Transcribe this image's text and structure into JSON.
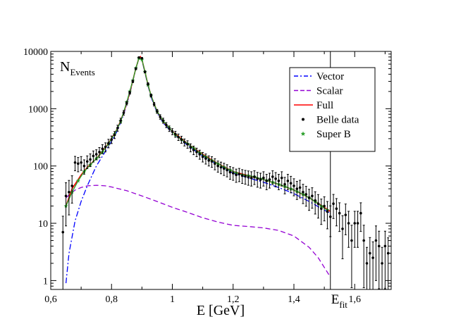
{
  "chart_data": {
    "type": "line",
    "y_scale": "log",
    "xlabel": "E [GeV]",
    "ylabel_main": "N",
    "ylabel_sub": "Events",
    "xlim": [
      0.6,
      1.72
    ],
    "ylim": [
      0.7,
      10000
    ],
    "x_ticks": [
      0.6,
      0.8,
      1.0,
      1.2,
      1.4,
      1.6
    ],
    "x_tick_labels": [
      "0,6",
      "0,8",
      "1",
      "1,2",
      "1,4",
      "1,6"
    ],
    "y_ticks": [
      1,
      10,
      100,
      1000,
      10000
    ],
    "y_tick_labels": [
      "1",
      "10",
      "100",
      "1000",
      "10000"
    ],
    "vline": {
      "x": 1.52,
      "label_main": "E",
      "label_sub": "fit"
    },
    "legend_position": "top-right",
    "colors": {
      "vector": "#0000ff",
      "scalar": "#9400d3",
      "full": "#ff0000",
      "belle": "#000000",
      "superb": "#2ca02c"
    },
    "legend": [
      {
        "key": "vector",
        "label": "Vector",
        "style": "dashdot"
      },
      {
        "key": "scalar",
        "label": "Scalar",
        "style": "dashed"
      },
      {
        "key": "full",
        "label": "Full",
        "style": "solid"
      },
      {
        "key": "belle",
        "label": "Belle data",
        "style": "dot"
      },
      {
        "key": "superb",
        "label": "Super B",
        "style": "star"
      }
    ],
    "series": [
      {
        "name": "Vector",
        "key": "vector",
        "x": [
          0.65,
          0.66,
          0.68,
          0.7,
          0.72,
          0.75,
          0.78,
          0.8,
          0.82,
          0.84,
          0.86,
          0.87,
          0.88,
          0.89,
          0.895,
          0.9,
          0.91,
          0.92,
          0.93,
          0.95,
          0.97,
          1.0,
          1.05,
          1.1,
          1.15,
          1.2,
          1.25,
          1.3,
          1.35,
          1.4,
          1.45,
          1.5,
          1.52
        ],
        "y": [
          0.9,
          3,
          11,
          24,
          45,
          100,
          180,
          270,
          420,
          800,
          1800,
          3000,
          5000,
          7500,
          8000,
          7000,
          4200,
          2500,
          1600,
          850,
          560,
          380,
          230,
          150,
          105,
          75,
          62,
          52,
          42,
          33,
          24,
          17,
          15
        ]
      },
      {
        "name": "Scalar",
        "key": "scalar",
        "x": [
          0.65,
          0.68,
          0.7,
          0.72,
          0.75,
          0.78,
          0.8,
          0.85,
          0.9,
          0.95,
          1.0,
          1.05,
          1.1,
          1.15,
          1.2,
          1.25,
          1.3,
          1.35,
          1.4,
          1.45,
          1.48,
          1.5,
          1.52
        ],
        "y": [
          28,
          38,
          42,
          45,
          46,
          45,
          43,
          37,
          30,
          24,
          19,
          15.5,
          12.5,
          10.5,
          9.2,
          8.8,
          8.3,
          7.5,
          6,
          3.8,
          2.5,
          1.7,
          1.15
        ]
      },
      {
        "name": "Full",
        "key": "full",
        "x": [
          0.65,
          0.67,
          0.7,
          0.72,
          0.75,
          0.78,
          0.8,
          0.82,
          0.84,
          0.86,
          0.87,
          0.88,
          0.89,
          0.895,
          0.9,
          0.91,
          0.92,
          0.93,
          0.95,
          0.97,
          1.0,
          1.05,
          1.1,
          1.15,
          1.2,
          1.25,
          1.3,
          1.35,
          1.4,
          1.45,
          1.5,
          1.52
        ],
        "y": [
          20,
          40,
          70,
          95,
          135,
          210,
          300,
          460,
          850,
          1900,
          3100,
          5100,
          7600,
          8100,
          7200,
          4400,
          2600,
          1700,
          900,
          600,
          400,
          245,
          160,
          110,
          80,
          68,
          58,
          48,
          38,
          28,
          19,
          16
        ]
      },
      {
        "name": "Super B",
        "key": "superb",
        "x": [
          0.65,
          0.67,
          0.69,
          0.71,
          0.73,
          0.75,
          0.77,
          0.79,
          0.81,
          0.83,
          0.85,
          0.86,
          0.87,
          0.88,
          0.89,
          0.9,
          0.91,
          0.92,
          0.93,
          0.95,
          0.97,
          0.99,
          1.01,
          1.03,
          1.05,
          1.07,
          1.09,
          1.11,
          1.13,
          1.15,
          1.17,
          1.19,
          1.21,
          1.23,
          1.25,
          1.27,
          1.29,
          1.31,
          1.33,
          1.35,
          1.37,
          1.39,
          1.41,
          1.43,
          1.45,
          1.47,
          1.49,
          1.51
        ],
        "y": [
          20,
          35,
          55,
          80,
          105,
          135,
          175,
          245,
          360,
          600,
          1300,
          2000,
          3100,
          5100,
          7600,
          7200,
          4400,
          2600,
          1700,
          900,
          610,
          460,
          350,
          290,
          245,
          205,
          170,
          145,
          125,
          110,
          95,
          85,
          76,
          70,
          68,
          65,
          60,
          56,
          52,
          48,
          44,
          40,
          36,
          32,
          28,
          24,
          20,
          17
        ]
      }
    ],
    "scatter": {
      "name": "Belle data",
      "key": "belle",
      "x": [
        0.64,
        0.65,
        0.66,
        0.67,
        0.68,
        0.69,
        0.7,
        0.71,
        0.72,
        0.73,
        0.74,
        0.75,
        0.76,
        0.77,
        0.78,
        0.79,
        0.8,
        0.81,
        0.82,
        0.83,
        0.84,
        0.85,
        0.86,
        0.87,
        0.88,
        0.89,
        0.9,
        0.91,
        0.92,
        0.93,
        0.94,
        0.95,
        0.96,
        0.97,
        0.98,
        0.99,
        1.0,
        1.01,
        1.02,
        1.03,
        1.04,
        1.05,
        1.06,
        1.07,
        1.08,
        1.09,
        1.1,
        1.11,
        1.12,
        1.13,
        1.14,
        1.15,
        1.16,
        1.17,
        1.18,
        1.19,
        1.2,
        1.21,
        1.22,
        1.23,
        1.24,
        1.25,
        1.26,
        1.27,
        1.28,
        1.29,
        1.3,
        1.31,
        1.32,
        1.33,
        1.34,
        1.35,
        1.36,
        1.37,
        1.38,
        1.39,
        1.4,
        1.41,
        1.42,
        1.43,
        1.44,
        1.45,
        1.46,
        1.47,
        1.48,
        1.49,
        1.5,
        1.51,
        1.52,
        1.53,
        1.54,
        1.55,
        1.56,
        1.57,
        1.58,
        1.59,
        1.6,
        1.61,
        1.62,
        1.63,
        1.64,
        1.65,
        1.66,
        1.67,
        1.68,
        1.69,
        1.7,
        1.71
      ],
      "y": [
        7,
        30,
        35,
        45,
        115,
        110,
        115,
        100,
        120,
        130,
        150,
        160,
        175,
        200,
        215,
        250,
        290,
        350,
        460,
        620,
        850,
        1250,
        1900,
        3000,
        5000,
        7800,
        7600,
        4400,
        2700,
        1700,
        1200,
        900,
        720,
        620,
        520,
        450,
        400,
        360,
        320,
        290,
        260,
        240,
        210,
        190,
        175,
        160,
        145,
        135,
        125,
        120,
        110,
        100,
        95,
        90,
        85,
        78,
        75,
        70,
        72,
        68,
        66,
        64,
        62,
        65,
        60,
        58,
        62,
        55,
        58,
        65,
        60,
        55,
        62,
        48,
        55,
        50,
        45,
        40,
        42,
        35,
        32,
        28,
        30,
        25,
        22,
        18,
        20,
        16,
        13,
        22,
        18,
        15,
        8,
        14,
        10,
        5,
        10,
        10,
        15,
        5,
        2,
        3,
        2.5,
        5,
        4,
        2,
        4,
        3
      ],
      "err_frac": [
        0.9,
        0.7,
        0.6,
        0.5,
        0.28,
        0.28,
        0.27,
        0.28,
        0.25,
        0.25,
        0.22,
        0.2,
        0.2,
        0.18,
        0.18,
        0.17,
        0.15,
        0.14,
        0.12,
        0.1,
        0.09,
        0.07,
        0.06,
        0.05,
        0.04,
        0.03,
        0.03,
        0.04,
        0.05,
        0.06,
        0.07,
        0.08,
        0.09,
        0.1,
        0.1,
        0.11,
        0.12,
        0.12,
        0.13,
        0.14,
        0.14,
        0.15,
        0.16,
        0.17,
        0.17,
        0.18,
        0.19,
        0.2,
        0.2,
        0.21,
        0.22,
        0.22,
        0.23,
        0.24,
        0.24,
        0.25,
        0.25,
        0.26,
        0.26,
        0.27,
        0.27,
        0.28,
        0.28,
        0.27,
        0.29,
        0.29,
        0.28,
        0.3,
        0.29,
        0.27,
        0.28,
        0.3,
        0.28,
        0.32,
        0.3,
        0.32,
        0.33,
        0.35,
        0.34,
        0.37,
        0.38,
        0.4,
        0.39,
        0.42,
        0.44,
        0.47,
        0.45,
        0.5,
        0.55,
        0.45,
        0.5,
        0.52,
        0.7,
        0.55,
        0.62,
        0.85,
        0.62,
        0.62,
        0.52,
        0.85,
        0.9,
        0.88,
        0.9,
        0.8,
        0.82,
        0.9,
        0.82,
        0.86
      ]
    }
  }
}
